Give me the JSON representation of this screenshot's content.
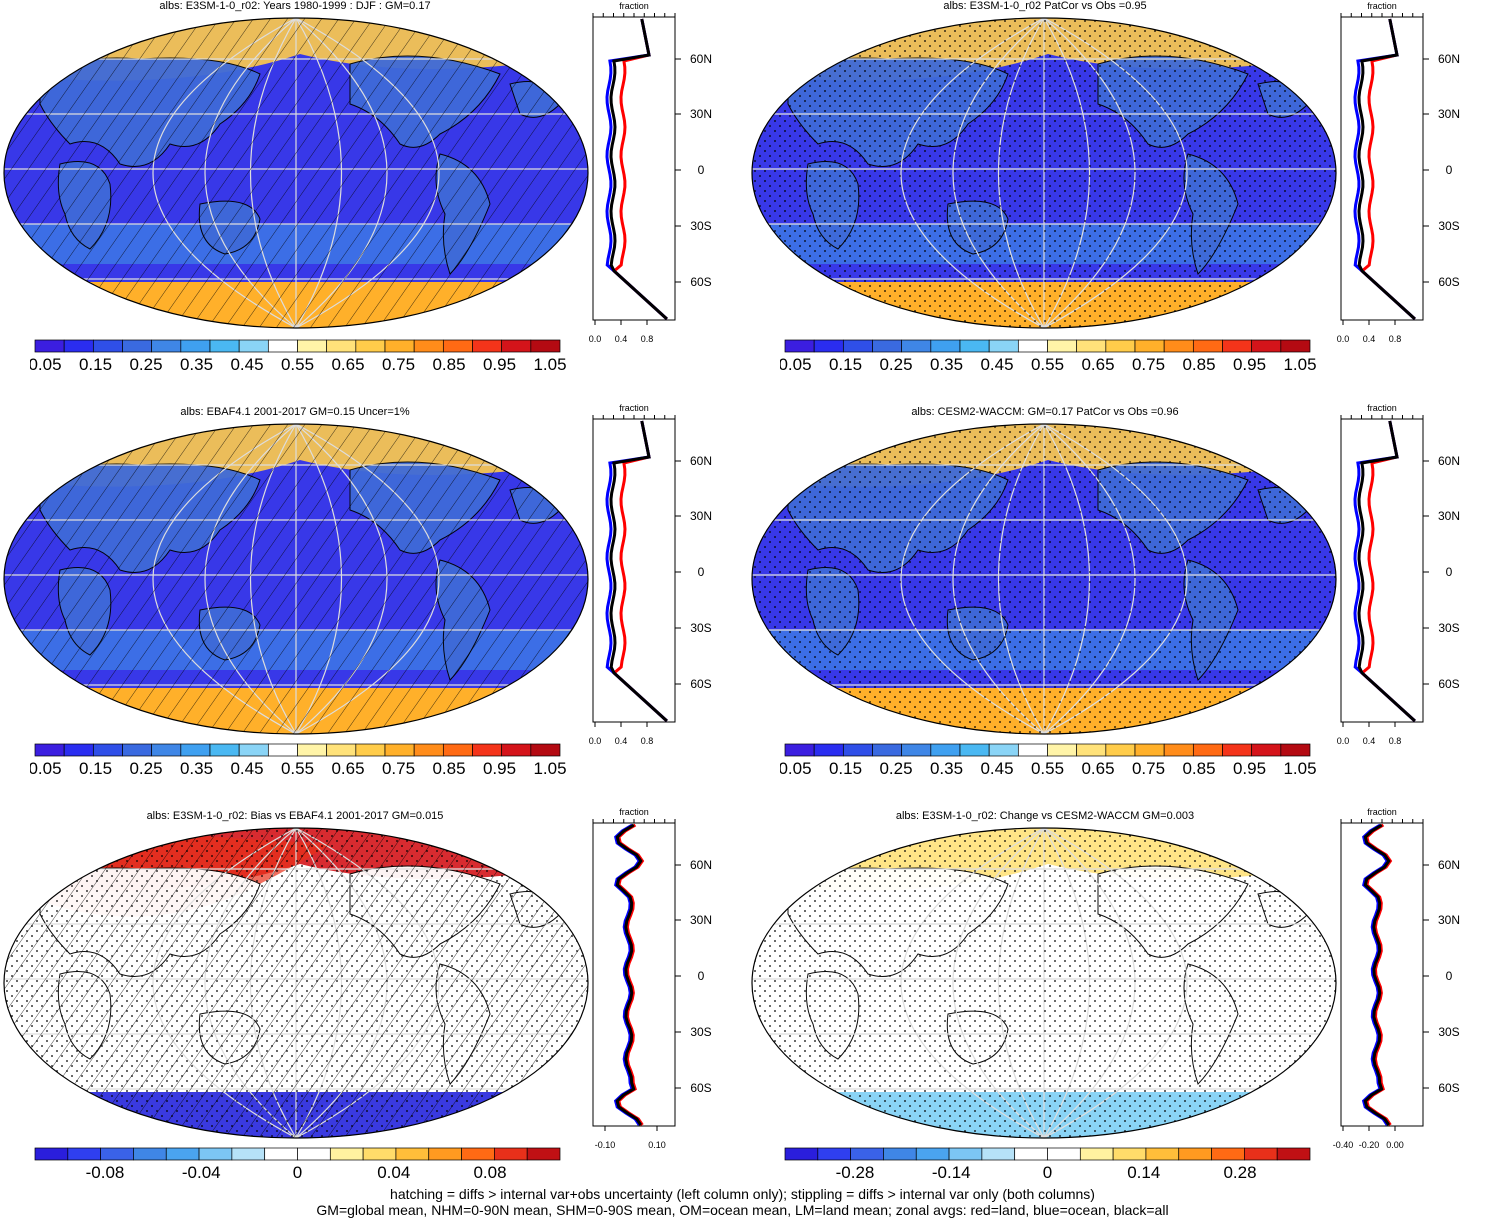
{
  "panels": [
    {
      "title": "albs: E3SM-1-0_r02: Years 1980-1999 : DJF : GM=0.17",
      "hatched": true,
      "stippled": false,
      "kind": "abs",
      "colorbar_labels": [
        "0.05",
        "0.15",
        "0.25",
        "0.35",
        "0.45",
        "0.55",
        "0.65",
        "0.75",
        "0.85",
        "0.95",
        "1.05"
      ],
      "zonal_xlabel": "fraction",
      "zonal_xticks": [
        "0.0",
        "0.4",
        "0.8"
      ],
      "zonal_lat_labels": [
        "60N",
        "30N",
        "0",
        "30S",
        "60S"
      ]
    },
    {
      "title": "albs: E3SM-1-0_r02 PatCor vs Obs =0.95",
      "hatched": false,
      "stippled": true,
      "kind": "abs",
      "colorbar_labels": [
        "0.05",
        "0.15",
        "0.25",
        "0.35",
        "0.45",
        "0.55",
        "0.65",
        "0.75",
        "0.85",
        "0.95",
        "1.05"
      ],
      "zonal_xlabel": "fraction",
      "zonal_xticks": [
        "0.0",
        "0.4",
        "0.8"
      ],
      "zonal_lat_labels": [
        "60N",
        "30N",
        "0",
        "30S",
        "60S"
      ]
    },
    {
      "title": "albs: EBAF4.1 2001-2017 GM=0.15 Uncer=1%",
      "hatched": true,
      "stippled": false,
      "kind": "abs",
      "colorbar_labels": [
        "0.05",
        "0.15",
        "0.25",
        "0.35",
        "0.45",
        "0.55",
        "0.65",
        "0.75",
        "0.85",
        "0.95",
        "1.05"
      ],
      "zonal_xlabel": "fraction",
      "zonal_xticks": [
        "0.0",
        "0.4",
        "0.8"
      ],
      "zonal_lat_labels": [
        "60N",
        "30N",
        "0",
        "30S",
        "60S"
      ]
    },
    {
      "title": "albs: CESM2-WACCM: GM=0.17 PatCor vs Obs =0.96",
      "hatched": false,
      "stippled": true,
      "kind": "abs",
      "colorbar_labels": [
        "0.05",
        "0.15",
        "0.25",
        "0.35",
        "0.45",
        "0.55",
        "0.65",
        "0.75",
        "0.85",
        "0.95",
        "1.05"
      ],
      "zonal_xlabel": "fraction",
      "zonal_xticks": [
        "0.0",
        "0.4",
        "0.8"
      ],
      "zonal_lat_labels": [
        "60N",
        "30N",
        "0",
        "30S",
        "60S"
      ]
    },
    {
      "title": "albs: E3SM-1-0_r02: Bias vs EBAF4.1 2001-2017 GM=0.015",
      "hatched": true,
      "stippled": true,
      "kind": "bias",
      "colorbar_labels": [
        "-0.08",
        "-0.04",
        "0",
        "0.04",
        "0.08"
      ],
      "zonal_xlabel": "fraction",
      "zonal_xticks": [
        "-0.10",
        "0.10"
      ],
      "zonal_lat_labels": [
        "60N",
        "30N",
        "0",
        "30S",
        "60S"
      ]
    },
    {
      "title": "albs: E3SM-1-0_r02: Change vs CESM2-WACCM GM=0.003",
      "hatched": false,
      "stippled": true,
      "kind": "change",
      "colorbar_labels": [
        "-0.28",
        "-0.14",
        "0",
        "0.14",
        "0.28"
      ],
      "zonal_xlabel": "fraction",
      "zonal_xticks": [
        "-0.40",
        "-0.20",
        "0.00"
      ],
      "zonal_lat_labels": [
        "60N",
        "30N",
        "0",
        "30S",
        "60S"
      ]
    }
  ],
  "footer": {
    "line1": "hatching = diffs > internal var+obs uncertainty (left column only); stippling = diffs > internal var only (both columns)",
    "line2": "GM=global mean, NHM=0-90N mean, SHM=0-90S mean, OM=ocean mean, LM=land mean; zonal avgs: red=land, blue=ocean, black=all"
  },
  "colors": {
    "abs_palette": [
      "#3b1ee0",
      "#2a2df0",
      "#2f4fe8",
      "#3a6ae0",
      "#3f86e6",
      "#3fa0f0",
      "#4ab8f2",
      "#8ad4f6",
      "#ffffff",
      "#fff4a8",
      "#ffe27a",
      "#ffcc4a",
      "#ffb02a",
      "#ff8c1a",
      "#ff6a14",
      "#f4341a",
      "#d4141a",
      "#b40a12"
    ],
    "diff_palette": [
      "#2a1edc",
      "#2f3ff0",
      "#3a62e8",
      "#3f86e6",
      "#4aa4f0",
      "#7cc6f4",
      "#b6e2f8",
      "#ffffff",
      "#ffffff",
      "#fff2a0",
      "#ffdc6a",
      "#ffbe3a",
      "#ff9a20",
      "#ff6a14",
      "#e8301a",
      "#c01014"
    ],
    "ocean": "#3838e8",
    "land_line": "#000000",
    "zonal_land": "#ff0000",
    "zonal_ocean": "#0000ff",
    "zonal_all": "#000000"
  }
}
